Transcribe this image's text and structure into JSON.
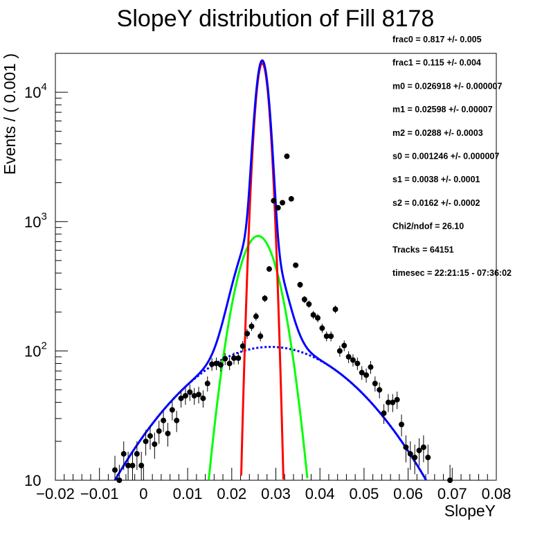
{
  "chart_data": {
    "type": "scatter",
    "title": "SlopeY distribution of Fill 8178",
    "xlabel": "SlopeY",
    "ylabel": "Events / ( 0.001 )",
    "xlim": [
      -0.02,
      0.08
    ],
    "ylim": [
      10,
      20000
    ],
    "yscale": "log",
    "grid": false,
    "x_tick_labels": [
      "−0.02",
      "−0.01",
      "0",
      "0.01",
      "0.02",
      "0.03",
      "0.04",
      "0.05",
      "0.06",
      "0.07",
      "0.08"
    ],
    "x_tick_values": [
      -0.02,
      -0.01,
      0,
      0.01,
      0.02,
      0.03,
      0.04,
      0.05,
      0.06,
      0.07,
      0.08
    ],
    "y_tick_labels": [
      {
        "base": "10",
        "exp": "",
        "value": 10
      },
      {
        "base": "10",
        "exp": "2",
        "value": 100
      },
      {
        "base": "10",
        "exp": "3",
        "value": 1000
      },
      {
        "base": "10",
        "exp": "4",
        "value": 10000
      }
    ],
    "annotations": [
      "frac0 =  0.817 +/- 0.005",
      "frac1 =  0.115 +/- 0.004",
      "m0 =  0.026918 +/- 0.000007",
      "m1 =  0.02598 +/- 0.00007",
      "m2 =  0.0288 +/- 0.0003",
      "s0 =  0.001246 +/- 0.000007",
      "s1 =  0.0038 +/- 0.0001",
      "s2 =  0.0162 +/- 0.0002",
      "Chi2/ndof =  26.10",
      "Tracks = 64151",
      "timesec = 22:21:15 - 07:36:02"
    ],
    "fit": {
      "total_events": 64151,
      "bin_width": 0.001,
      "frac0": 0.817,
      "frac1": 0.115,
      "m0": 0.026918,
      "m1": 0.02598,
      "m2": 0.0288,
      "s0": 0.001246,
      "s1": 0.0038,
      "s2": 0.0162
    },
    "series": [
      {
        "kind": "points",
        "color": "#000000",
        "x": [
          -0.0065,
          -0.0055,
          -0.0045,
          -0.0035,
          -0.0025,
          -0.0015,
          -0.0005,
          0.0005,
          0.0015,
          0.0025,
          0.0035,
          0.0045,
          0.0055,
          0.0065,
          0.0075,
          0.0085,
          0.0095,
          0.0105,
          0.0115,
          0.0125,
          0.0135,
          0.0145,
          0.0155,
          0.0165,
          0.0175,
          0.0185,
          0.0195,
          0.0205,
          0.0215,
          0.0225,
          0.0235,
          0.0245,
          0.0255,
          0.0265,
          0.0275,
          0.0285,
          0.0295,
          0.0305,
          0.0315,
          0.0325,
          0.0335,
          0.0345,
          0.0355,
          0.0365,
          0.0375,
          0.0385,
          0.0395,
          0.0405,
          0.0415,
          0.0425,
          0.0435,
          0.0445,
          0.0455,
          0.0465,
          0.0475,
          0.0485,
          0.0495,
          0.0505,
          0.0515,
          0.0525,
          0.0535,
          0.0545,
          0.0555,
          0.0565,
          0.0575,
          0.0585,
          0.0595,
          0.0605,
          0.0615,
          0.0625,
          0.0635,
          0.0645,
          0.0695
        ],
        "y": [
          12,
          10,
          16,
          13,
          13,
          16,
          13,
          20,
          22,
          19,
          24,
          29,
          23,
          35,
          29,
          43,
          45,
          48,
          45,
          46,
          43,
          56,
          79,
          80,
          78,
          87,
          80,
          88,
          88,
          109,
          136,
          155,
          185,
          130,
          255,
          430,
          1450,
          1280,
          1400,
          3200,
          1500,
          460,
          325,
          250,
          230,
          190,
          180,
          150,
          130,
          130,
          210,
          100,
          110,
          90,
          85,
          80,
          68,
          65,
          75,
          56,
          50,
          33,
          40,
          40,
          42,
          27,
          18,
          16,
          15,
          17,
          18,
          15,
          10
        ]
      },
      {
        "kind": "curve",
        "component": "total",
        "color": "#0000ff",
        "style": "solid"
      },
      {
        "kind": "curve",
        "component": "gaussian-0",
        "color": "#ff0000",
        "style": "solid"
      },
      {
        "kind": "curve",
        "component": "gaussian-1",
        "color": "#00ff00",
        "style": "solid"
      },
      {
        "kind": "curve",
        "component": "gaussian-2",
        "color": "#0000ff",
        "style": "dashed"
      }
    ]
  }
}
